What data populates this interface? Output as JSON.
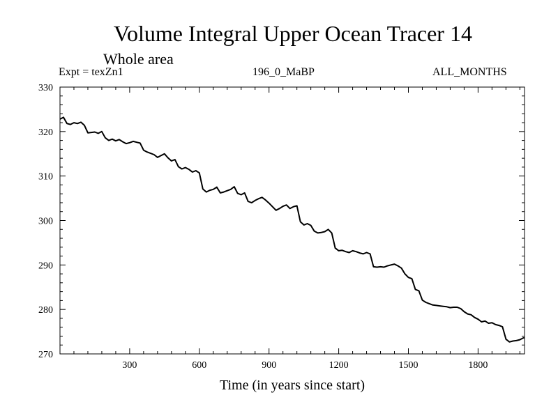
{
  "chart_data": {
    "type": "line",
    "title": "Volume Integral Upper Ocean Tracer 14",
    "subtitle": "Whole area",
    "experiment_label": "Expt = texZn1",
    "period_label": "196_0_MaBP",
    "months_label": "ALL_MONTHS",
    "xlabel": "Time (in years since start)",
    "ylabel": "",
    "xlim": [
      0,
      2000
    ],
    "ylim": [
      270,
      330
    ],
    "x_major_ticks": [
      300,
      600,
      900,
      1200,
      1500,
      1800
    ],
    "x_tick_labels": [
      "300",
      "600",
      "900",
      "1200",
      "1500",
      "1800"
    ],
    "y_major_ticks": [
      270,
      280,
      290,
      300,
      310,
      320,
      330
    ],
    "y_tick_labels": [
      "270",
      "280",
      "290",
      "300",
      "310",
      "320",
      "330"
    ],
    "line_color": "#000000",
    "series": [
      {
        "name": "Tracer 14",
        "x": [
          0,
          15,
          30,
          45,
          60,
          75,
          90,
          105,
          120,
          135,
          150,
          165,
          180,
          195,
          210,
          225,
          240,
          255,
          270,
          285,
          300,
          315,
          330,
          345,
          360,
          375,
          390,
          405,
          420,
          435,
          450,
          465,
          480,
          495,
          510,
          525,
          540,
          555,
          570,
          585,
          600,
          615,
          630,
          645,
          660,
          675,
          690,
          705,
          720,
          735,
          750,
          765,
          780,
          795,
          810,
          825,
          840,
          855,
          870,
          885,
          900,
          915,
          930,
          945,
          960,
          975,
          990,
          1005,
          1020,
          1035,
          1050,
          1065,
          1080,
          1095,
          1110,
          1125,
          1140,
          1155,
          1170,
          1185,
          1200,
          1215,
          1230,
          1245,
          1260,
          1275,
          1290,
          1305,
          1320,
          1335,
          1350,
          1365,
          1380,
          1395,
          1410,
          1425,
          1440,
          1455,
          1470,
          1485,
          1500,
          1515,
          1530,
          1545,
          1560,
          1575,
          1590,
          1605,
          1620,
          1635,
          1650,
          1665,
          1680,
          1695,
          1710,
          1725,
          1740,
          1755,
          1770,
          1785,
          1800,
          1815,
          1830,
          1845,
          1860,
          1875,
          1890,
          1905,
          1920,
          1935,
          1950,
          1965,
          1980,
          1995,
          2000
        ],
        "y": [
          322.8,
          323.2,
          321.8,
          321.6,
          322.0,
          321.8,
          322.1,
          321.4,
          319.7,
          319.8,
          319.9,
          319.6,
          320.0,
          318.6,
          318.0,
          318.3,
          317.9,
          318.2,
          317.7,
          317.3,
          317.5,
          317.8,
          317.6,
          317.4,
          315.8,
          315.4,
          315.1,
          314.8,
          314.2,
          314.6,
          315.0,
          314.1,
          313.4,
          313.7,
          312.1,
          311.6,
          311.9,
          311.5,
          310.9,
          311.2,
          310.7,
          307.1,
          306.4,
          306.8,
          307.0,
          307.5,
          306.2,
          306.4,
          306.7,
          307.0,
          307.6,
          306.1,
          305.8,
          306.2,
          304.3,
          304.0,
          304.5,
          304.9,
          305.2,
          304.6,
          303.9,
          303.1,
          302.3,
          302.7,
          303.2,
          303.5,
          302.7,
          303.1,
          303.3,
          299.7,
          299.0,
          299.3,
          298.9,
          297.6,
          297.2,
          297.3,
          297.5,
          298.0,
          297.2,
          293.8,
          293.2,
          293.3,
          293.0,
          292.8,
          293.2,
          293.0,
          292.7,
          292.5,
          292.8,
          292.5,
          289.6,
          289.5,
          289.6,
          289.5,
          289.8,
          290.0,
          290.2,
          289.8,
          289.3,
          288.0,
          287.2,
          286.9,
          284.5,
          284.2,
          282.1,
          281.6,
          281.3,
          281.0,
          280.9,
          280.8,
          280.7,
          280.6,
          280.4,
          280.5,
          280.5,
          280.2,
          279.5,
          279.0,
          278.8,
          278.2,
          277.8,
          277.2,
          277.4,
          276.9,
          277.0,
          276.6,
          276.4,
          276.1,
          273.3,
          272.7,
          272.9,
          273.0,
          273.2,
          273.6,
          273.6
        ]
      }
    ]
  }
}
